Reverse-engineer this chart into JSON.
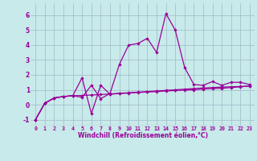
{
  "xlabel": "Windchill (Refroidissement éolien,°C)",
  "x_values": [
    0,
    1,
    2,
    3,
    4,
    5,
    6,
    7,
    8,
    9,
    10,
    11,
    12,
    13,
    14,
    15,
    16,
    17,
    18,
    19,
    20,
    21,
    22,
    23
  ],
  "line1_y": [
    -1.0,
    0.1,
    0.45,
    0.55,
    0.6,
    1.8,
    -0.6,
    1.3,
    0.7,
    0.75,
    0.78,
    0.82,
    0.85,
    0.88,
    0.92,
    0.95,
    0.98,
    1.0,
    1.05,
    1.08,
    1.1,
    1.15,
    1.2,
    1.25
  ],
  "line2_y": [
    -1.0,
    0.1,
    0.45,
    0.55,
    0.6,
    0.5,
    1.3,
    0.4,
    0.75,
    2.7,
    4.0,
    4.1,
    4.45,
    3.5,
    6.1,
    5.0,
    2.5,
    1.35,
    1.3,
    1.55,
    1.3,
    1.5,
    1.5,
    1.35
  ],
  "line3_y": [
    -1.0,
    0.1,
    0.45,
    0.55,
    0.6,
    0.62,
    0.65,
    0.68,
    0.72,
    0.76,
    0.8,
    0.84,
    0.88,
    0.92,
    0.96,
    1.0,
    1.04,
    1.08,
    1.12,
    1.15,
    1.18,
    1.2,
    1.22,
    1.25
  ],
  "line_color": "#990099",
  "bg_color": "#c8eaea",
  "grid_color": "#a0b8c8",
  "ylim": [
    -1.4,
    6.8
  ],
  "yticks": [
    -1,
    0,
    1,
    2,
    3,
    4,
    5,
    6
  ],
  "xlim": [
    -0.5,
    23.5
  ]
}
